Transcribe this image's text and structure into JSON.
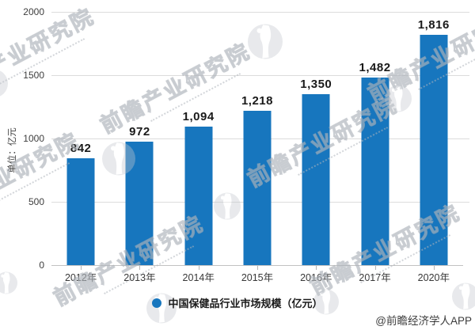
{
  "watermark": {
    "brand_text": "前瞻产业研究院"
  },
  "attribution": "@前瞻经济学人APP",
  "chart_data": {
    "type": "bar",
    "title": "",
    "unit_label": "单位：亿元",
    "categories": [
      "2012年",
      "2013年",
      "2014年",
      "2015年",
      "2016年",
      "2017年",
      "2020年"
    ],
    "values": [
      842,
      972,
      1094,
      1218,
      1350,
      1482,
      1816
    ],
    "values_formatted": [
      "842",
      "972",
      "1,094",
      "1,218",
      "1,350",
      "1,482",
      "1,816"
    ],
    "ylim": [
      0,
      2000
    ],
    "yticks": [
      0,
      500,
      1000,
      1500,
      2000
    ],
    "bar_color": "#1776be",
    "grid": true,
    "legend_position": "bottom",
    "legend": [
      {
        "label": "中国保健品行业市场规模（亿元）",
        "color": "#1776be"
      }
    ]
  }
}
